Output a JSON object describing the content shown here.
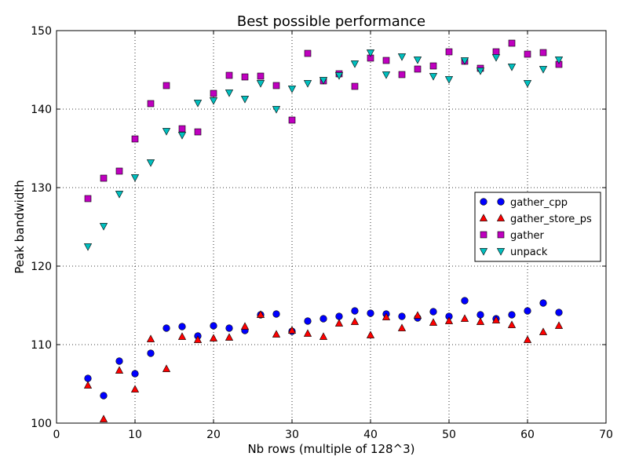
{
  "chart_data": {
    "type": "scatter",
    "title": "Best possible performance",
    "xlabel": "Nb rows (multiple of 128^3)",
    "ylabel": "Peak bandwidth",
    "xlim": [
      0,
      70
    ],
    "ylim": [
      100,
      150
    ],
    "xticks": [
      0,
      10,
      20,
      30,
      40,
      50,
      60,
      70
    ],
    "yticks": [
      100,
      110,
      120,
      130,
      140,
      150
    ],
    "xtick_labels": [
      "0",
      "10",
      "20",
      "30",
      "40",
      "50",
      "60",
      "70"
    ],
    "ytick_labels": [
      "100",
      "110",
      "120",
      "130",
      "140",
      "150"
    ],
    "grid": true,
    "legend_position": "center-right",
    "x": [
      4,
      6,
      8,
      10,
      12,
      14,
      16,
      18,
      20,
      22,
      24,
      26,
      28,
      30,
      32,
      34,
      36,
      38,
      40,
      42,
      44,
      46,
      48,
      50,
      52,
      54,
      56,
      58,
      60,
      62,
      64
    ],
    "series": [
      {
        "name": "gather_cpp",
        "marker": "circle",
        "color": "#0000ff",
        "values": [
          105.7,
          103.5,
          107.9,
          106.3,
          108.9,
          112.1,
          112.3,
          111.1,
          112.4,
          112.1,
          111.8,
          113.8,
          113.9,
          111.7,
          113.0,
          113.3,
          113.6,
          114.3,
          114.0,
          113.9,
          113.6,
          113.4,
          114.2,
          113.6,
          115.6,
          113.8,
          113.3,
          113.8,
          114.3,
          115.3,
          114.1
        ]
      },
      {
        "name": "gather_store_ps",
        "marker": "triangle-up",
        "color": "#ff0000",
        "values": [
          104.8,
          100.5,
          106.7,
          104.3,
          110.7,
          106.9,
          111.0,
          110.6,
          110.8,
          110.9,
          112.3,
          113.8,
          111.3,
          111.8,
          111.4,
          111.0,
          112.7,
          112.9,
          111.2,
          113.5,
          112.1,
          113.7,
          112.8,
          113.0,
          113.3,
          112.9,
          113.1,
          112.5,
          110.6,
          111.6,
          112.4
        ]
      },
      {
        "name": "gather",
        "marker": "square",
        "color": "#bf00bf",
        "values": [
          128.6,
          131.2,
          132.1,
          136.2,
          140.7,
          143.0,
          137.5,
          137.1,
          142.0,
          144.3,
          144.1,
          144.2,
          143.0,
          138.6,
          147.1,
          143.6,
          144.5,
          142.9,
          146.5,
          146.2,
          144.4,
          145.1,
          145.5,
          147.3,
          146.1,
          145.2,
          147.3,
          148.4,
          147.0,
          147.2,
          145.7
        ]
      },
      {
        "name": "unpack",
        "marker": "triangle-down",
        "color": "#00bfbf",
        "values": [
          122.5,
          125.1,
          129.2,
          131.3,
          133.2,
          137.2,
          136.7,
          140.8,
          141.1,
          142.1,
          141.3,
          143.3,
          140.0,
          142.6,
          143.3,
          143.7,
          144.3,
          145.8,
          147.2,
          144.4,
          146.7,
          146.3,
          144.2,
          143.8,
          146.2,
          144.9,
          146.6,
          145.4,
          143.3,
          145.1,
          146.3
        ]
      }
    ]
  }
}
